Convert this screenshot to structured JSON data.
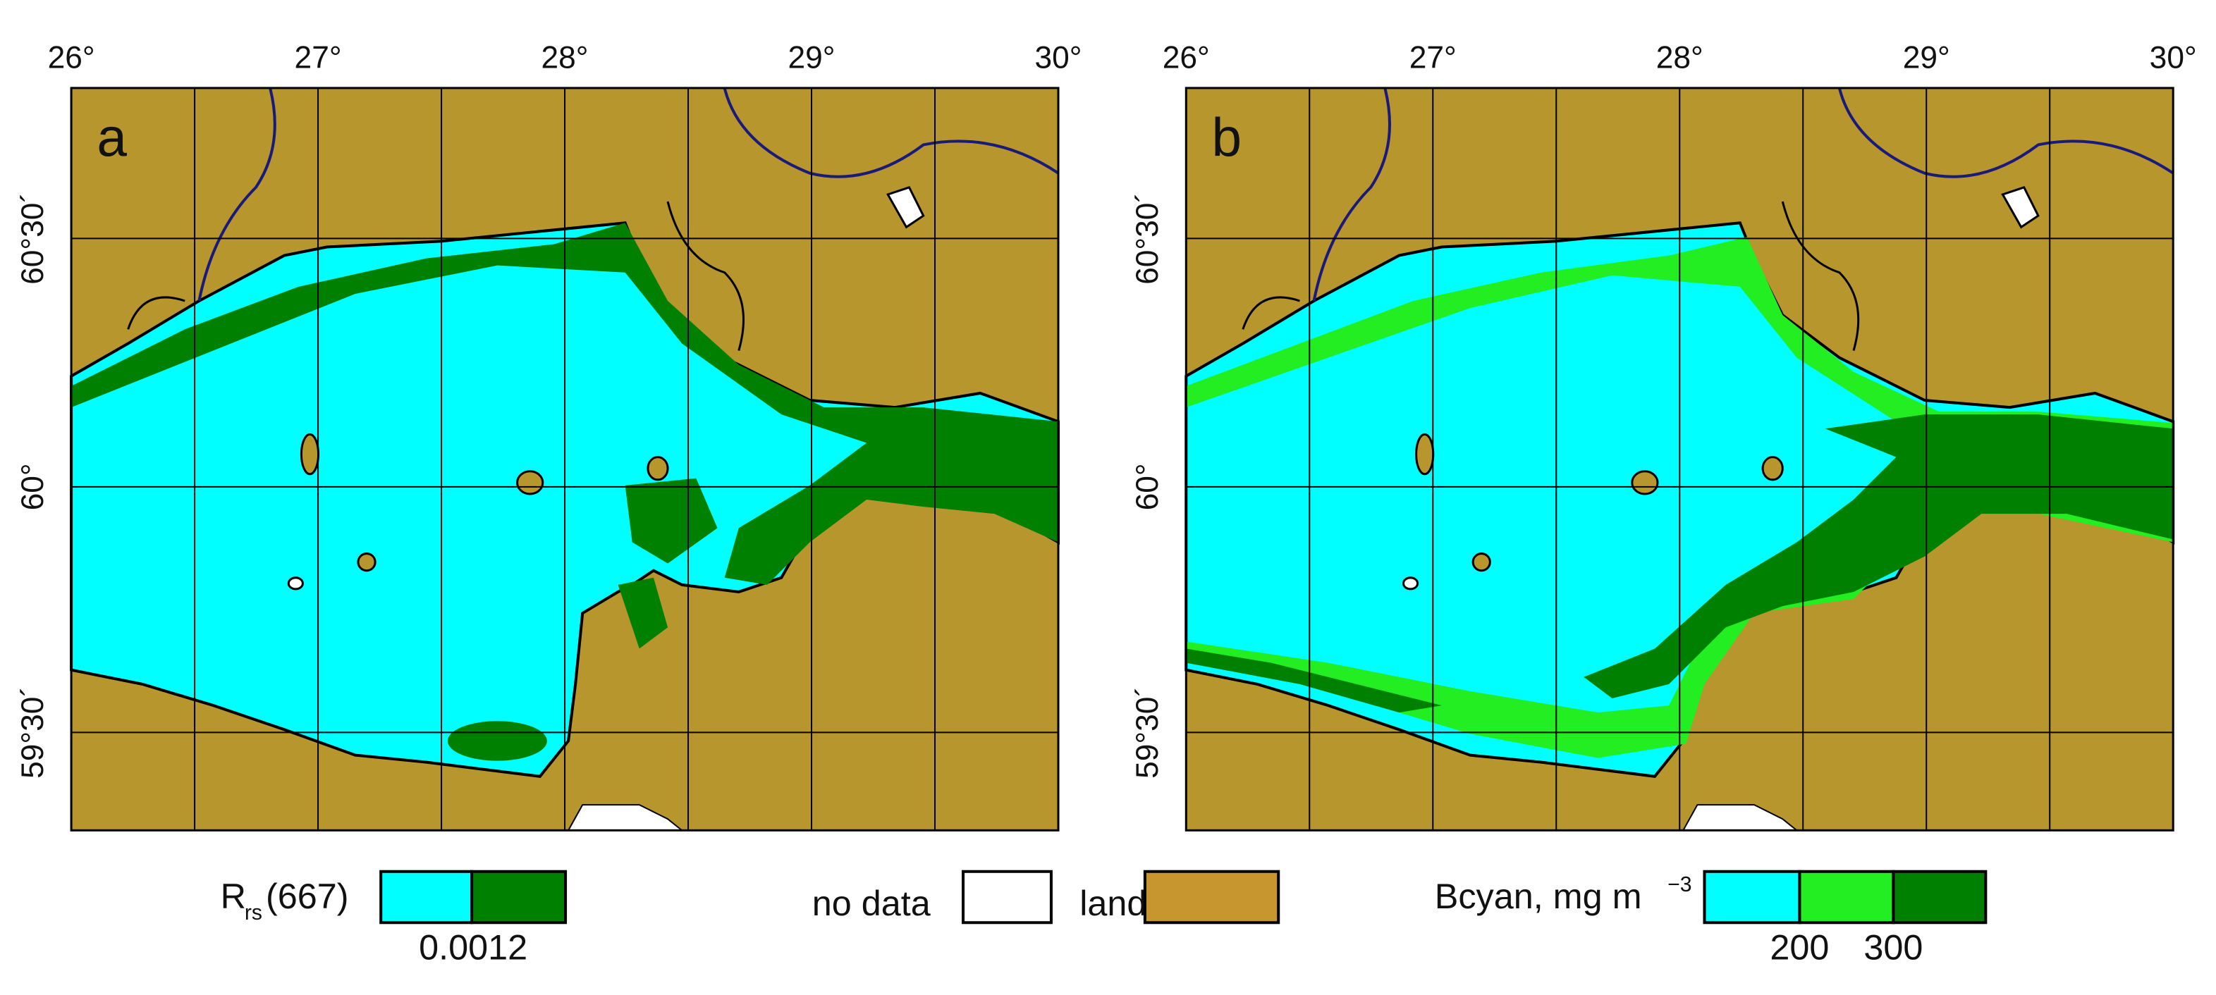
{
  "panels": [
    {
      "label": "a",
      "lon_labels": [
        "26°",
        "27°",
        "28°",
        "29°",
        "30°"
      ],
      "lat_labels": [
        "60°30´",
        "60°",
        "59°30´"
      ]
    },
    {
      "label": "b",
      "lon_labels": [
        "26°",
        "27°",
        "28°",
        "29°",
        "30°"
      ],
      "lat_labels": [
        "60°30´",
        "60°",
        "59°30´"
      ]
    }
  ],
  "legend": {
    "rrs": {
      "symbol": "R",
      "subscript": "rs",
      "wavelength": "(667)",
      "threshold": "0.0012"
    },
    "no_data": "no data",
    "land": "land",
    "bcyan": {
      "label": "Bcyan, mg m",
      "exponent": "−3",
      "thresholds": [
        "200",
        "300"
      ]
    }
  }
}
